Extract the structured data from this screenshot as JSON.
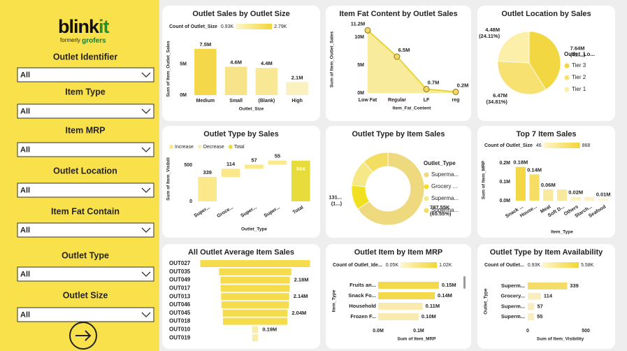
{
  "sidebar": {
    "logo_left": "blink",
    "logo_right": "it",
    "tagline": "formerly",
    "tagline_brand": "grofers",
    "filters": [
      {
        "label": "Outlet Identifier",
        "selected": "All"
      },
      {
        "label": "Item Type",
        "selected": "All"
      },
      {
        "label": "Item MRP",
        "selected": "All"
      },
      {
        "label": "Outlet Location",
        "selected": "All"
      },
      {
        "label": "Item Fat Contain",
        "selected": "All"
      },
      {
        "label": "Outlet Type",
        "selected": "All"
      },
      {
        "label": "Outlet Size",
        "selected": "All"
      }
    ]
  },
  "chart_data": [
    {
      "type": "bar",
      "title": "Outlet Sales by Outlet Size",
      "color_legend": {
        "title": "Count of Outlet_Size",
        "min": "0.93K",
        "max": "2.79K"
      },
      "categories": [
        "Medium",
        "Small",
        "(Blank)",
        "High"
      ],
      "values": [
        7.5,
        4.6,
        4.4,
        2.1
      ],
      "value_labels": [
        "7.5M",
        "4.6M",
        "4.4M",
        "2.1M"
      ],
      "colors": [
        "#f4d84a",
        "#f7e48a",
        "#f8e794",
        "#fbf0bf"
      ],
      "ylim": [
        0,
        8.5
      ],
      "yticks": [
        {
          "value": 0,
          "label": "0M"
        },
        {
          "value": 5,
          "label": "5M"
        }
      ],
      "x_label": "Outlet_Size",
      "y_label": "Sum of Item_Outlet_Sales"
    },
    {
      "type": "area",
      "title": "Item Fat Content by Outlet Sales",
      "categories": [
        "Low Fat",
        "Regular",
        "LF",
        "reg"
      ],
      "values": [
        11.2,
        6.5,
        0.7,
        0.2
      ],
      "value_labels": [
        "11.2M",
        "6.5M",
        "0.7M",
        "0.2M"
      ],
      "color": "#e8d535",
      "fill": "#f8ec9c",
      "ylim": [
        0,
        12
      ],
      "yticks": [
        {
          "value": 0,
          "label": "0M"
        },
        {
          "value": 5,
          "label": "5M"
        },
        {
          "value": 10,
          "label": "10M"
        }
      ],
      "x_label": "Item_Fat_Content",
      "y_label": "Sum of Item_Outlet_Sales"
    },
    {
      "type": "pie",
      "title": "Outlet Location by Sales",
      "legend_title": "Outlet_Lo...",
      "categories": [
        "Tier 3",
        "Tier 2",
        "Tier 1"
      ],
      "values": [
        7.64,
        6.47,
        4.48
      ],
      "value_labels": [
        "7.64M",
        "6.47M",
        "4.48M"
      ],
      "pct_labels": [
        "(41....)",
        "(34.81%)",
        "(24.11%)"
      ],
      "colors": [
        "#f2d642",
        "#f6e171",
        "#fbefaa"
      ]
    },
    {
      "type": "waterfall",
      "title": "Outlet Type by Sales",
      "legend": [
        {
          "name": "Increase",
          "color": "#fbe88a"
        },
        {
          "name": "Decrease",
          "color": "#f8edb8"
        },
        {
          "name": "Total",
          "color": "#e7dc3c"
        }
      ],
      "categories": [
        "Super...",
        "Groce...",
        "Super...",
        "Super..."
      ],
      "values": [
        339,
        114,
        57,
        55
      ],
      "total_label": "Total",
      "total": 564,
      "ylim": [
        0,
        620
      ],
      "yticks": [
        0,
        500
      ],
      "x_label": "Outlet_Type",
      "y_label": "Sum of Item_Visibili"
    },
    {
      "type": "donut",
      "title": "Outlet Type by Item Sales",
      "legend_title": "Outlet_Type",
      "categories": [
        "Superma...",
        "Grocery ...",
        "Superma...",
        "Superma..."
      ],
      "values": [
        787.55,
        131.48,
        142.1,
        140.5
      ],
      "value_labels": [
        "787.55K",
        "131...",
        null,
        null
      ],
      "pct_labels": [
        "(65.55%)",
        "(1...)",
        null,
        null
      ],
      "colors": [
        "#efd97e",
        "#f1e01f",
        "#f7e887",
        "#f3de63"
      ]
    },
    {
      "type": "bar",
      "title": "Top 7 Item Sales",
      "color_legend": {
        "title": "Count of Outlet_Size",
        "min": "46",
        "max": "868"
      },
      "categories": [
        "Snack ...",
        "House...",
        "Meat",
        "Soft D...",
        "Others",
        "Starch...",
        "Seafood"
      ],
      "values": [
        0.18,
        0.14,
        0.06,
        0.06,
        0.02,
        0.02,
        0.01
      ],
      "value_labels": [
        "0.18M",
        "0.14M",
        "0.06M",
        null,
        "0.02M",
        null,
        "0.01M"
      ],
      "colors": [
        "#f3d744",
        "#f5de63",
        "#f8e99e",
        "#f8e99e",
        "#fbf1c4",
        "#fbf1c4",
        "#fcf4d2"
      ],
      "ylim": [
        0,
        0.22
      ],
      "yticks": [
        {
          "value": 0,
          "label": "0.0M"
        },
        {
          "value": 0.1,
          "label": "0.1M"
        },
        {
          "value": 0.2,
          "label": "0.2M"
        }
      ],
      "x_label": "Item_Type",
      "y_label": "Sum of Item_MRP"
    },
    {
      "type": "funnel",
      "title": "All Outlet Average Item Sales",
      "categories": [
        "OUT027",
        "OUT035",
        "OUT049",
        "OUT017",
        "OUT013",
        "OUT046",
        "OUT045",
        "OUT018",
        "OUT010",
        "OUT019"
      ],
      "values": [
        3.45,
        2.27,
        2.18,
        2.17,
        2.14,
        2.12,
        2.04,
        2.02,
        0.19,
        0.18
      ],
      "value_labels": [
        null,
        null,
        "2.18M",
        null,
        "2.14M",
        null,
        "2.04M",
        null,
        "0.19M",
        null
      ],
      "colors": [
        "#f5dc4c",
        "#f5dc4c",
        "#f5dc4c",
        "#f5dc4c",
        "#f5dc4c",
        "#f5dc4c",
        "#f5dc4c",
        "#f5dc4c",
        "#f9eca8",
        "#f9eca8"
      ]
    },
    {
      "type": "hbar",
      "title": "Outlet Item by Item MRP",
      "color_legend": {
        "title": "Count of Outlet_Ide...",
        "min": "0.05K",
        "max": "1.02K"
      },
      "categories": [
        "Fruits an...",
        "Snack Fo...",
        "Household",
        "Frozen F..."
      ],
      "values": [
        0.15,
        0.14,
        0.11,
        0.1
      ],
      "value_labels": [
        "0.15M",
        "0.14M",
        "0.11M",
        "0.10M"
      ],
      "colors": [
        "#f4d94a",
        "#f4d94a",
        "#f9ebb0",
        "#f9ebb0"
      ],
      "xlim": [
        0,
        0.19
      ],
      "xticks": [
        {
          "value": 0,
          "label": "0.0M"
        },
        {
          "value": 0.1,
          "label": "0.1M"
        }
      ],
      "x_label": "Sum of Item_MRP",
      "y_label": "Item_Type"
    },
    {
      "type": "hbar",
      "title": "Outlet Type by Item Availability",
      "color_legend": {
        "title": "Count of Outlet...",
        "min": "0.93K",
        "max": "5.58K"
      },
      "categories": [
        "Superm...",
        "Grocery...",
        "Superm...",
        "Superm..."
      ],
      "values": [
        339,
        114,
        57,
        55
      ],
      "colors": [
        "#f3dc6a",
        "#f8eec0",
        "#f8eec0",
        "#f8eec0"
      ],
      "xlim": [
        0,
        560
      ],
      "xticks": [
        0,
        500
      ],
      "x_label": "Sum of Item_Visibility",
      "y_label": "Outlet_Type"
    }
  ]
}
